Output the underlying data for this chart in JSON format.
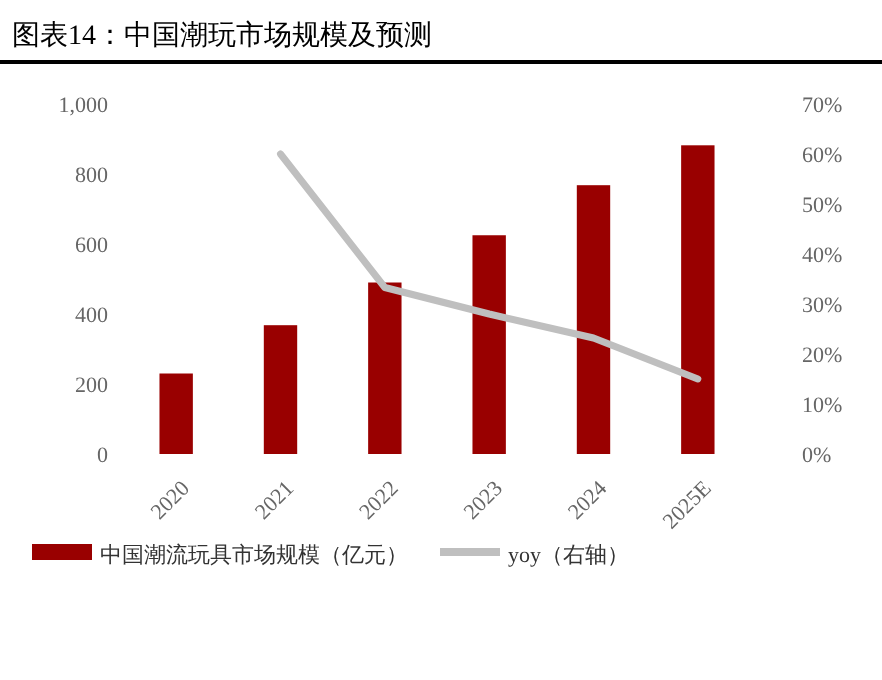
{
  "chart_data": {
    "type": "bar",
    "title": "图表14：中国潮玩市场规模及预测",
    "categories": [
      "2020",
      "2021",
      "2022",
      "2023",
      "2024",
      "2025E"
    ],
    "series": [
      {
        "name": "中国潮流玩具市场规模（亿元）",
        "color": "#990000",
        "values": [
          230,
          368,
          490,
          625,
          768,
          882
        ]
      },
      {
        "name": "yoy（右轴）",
        "type": "line",
        "axis": "y2",
        "color": "#bfbfbf",
        "values": [
          null,
          60,
          33.3,
          28,
          23.2,
          15
        ]
      }
    ],
    "ylim": [
      0,
      1000
    ],
    "yticks": [
      0,
      200,
      400,
      600,
      800,
      {
        "value": 1000,
        "label": "1,000"
      }
    ],
    "y2lim": [
      0,
      70
    ],
    "y2ticks": [
      {
        "value": 0,
        "label": "0%"
      },
      {
        "value": 10,
        "label": "10%"
      },
      {
        "value": 20,
        "label": "20%"
      },
      {
        "value": 30,
        "label": "30%"
      },
      {
        "value": 40,
        "label": "40%"
      },
      {
        "value": 50,
        "label": "50%"
      },
      {
        "value": 60,
        "label": "60%"
      },
      {
        "value": 70,
        "label": "70%"
      }
    ],
    "legend": "bottom",
    "grid": false
  }
}
